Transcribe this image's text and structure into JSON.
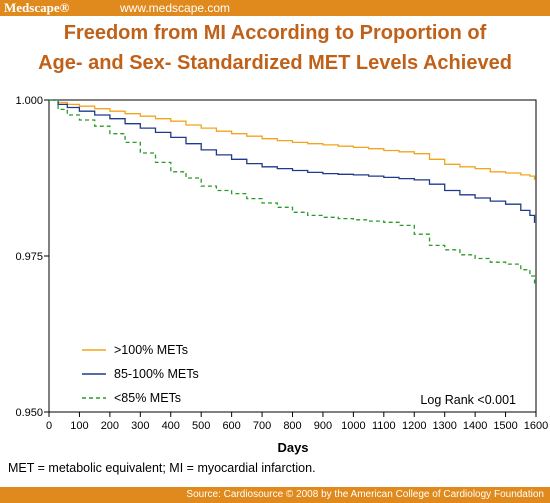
{
  "header": {
    "brand": "Medscape®",
    "url": "www.medscape.com"
  },
  "footer": {
    "note": "MET = metabolic equivalent; MI = myocardial infarction.",
    "source": "Source: Cardiosource © 2008 by the American College of Cardiology Foundation"
  },
  "colors": {
    "banner": "#e08a1e",
    "title": "#c0611a",
    "series_high": "#f2a51c",
    "series_mid": "#1f3a8c",
    "series_low": "#2a9a2a"
  },
  "chart_data": {
    "type": "line",
    "title_line1": "Freedom from MI According to Proportion of",
    "title_line2": "Age- and Sex- Standardized MET Levels Achieved",
    "xlabel": "Days",
    "ylabel": "",
    "xlim": [
      0,
      1600
    ],
    "ylim": [
      0.95,
      1.0
    ],
    "x_ticks": [
      0,
      100,
      200,
      300,
      400,
      500,
      600,
      700,
      800,
      900,
      1000,
      1100,
      1200,
      1300,
      1400,
      1500,
      1600
    ],
    "y_ticks": [
      {
        "value": 0.95,
        "label": "0.950"
      },
      {
        "value": 0.975,
        "label": "0.975"
      },
      {
        "value": 1.0,
        "label": "1.000"
      }
    ],
    "legend_position": "bottom-left",
    "annotation": "Log Rank <0.001",
    "series": [
      {
        "name": ">100% METs",
        "style": "solid",
        "x": [
          0,
          30,
          60,
          100,
          150,
          200,
          250,
          300,
          350,
          400,
          450,
          500,
          550,
          600,
          650,
          700,
          750,
          800,
          850,
          900,
          950,
          1000,
          1050,
          1100,
          1150,
          1200,
          1250,
          1300,
          1350,
          1400,
          1450,
          1500,
          1550,
          1580,
          1595
        ],
        "y": [
          1.0,
          0.9996,
          0.9993,
          0.999,
          0.9986,
          0.9982,
          0.9978,
          0.9974,
          0.997,
          0.9966,
          0.996,
          0.9955,
          0.995,
          0.9946,
          0.9942,
          0.9938,
          0.9935,
          0.9932,
          0.993,
          0.9928,
          0.9926,
          0.9924,
          0.9922,
          0.9919,
          0.9917,
          0.9914,
          0.9905,
          0.9897,
          0.9893,
          0.989,
          0.9885,
          0.9883,
          0.988,
          0.9878,
          0.9872
        ]
      },
      {
        "name": "85-100% METs",
        "style": "solid",
        "x": [
          0,
          30,
          60,
          100,
          150,
          200,
          250,
          300,
          350,
          400,
          450,
          500,
          550,
          600,
          650,
          700,
          750,
          800,
          850,
          900,
          950,
          1000,
          1050,
          1100,
          1150,
          1200,
          1250,
          1300,
          1350,
          1400,
          1450,
          1500,
          1550,
          1580,
          1595
        ],
        "y": [
          1.0,
          0.9993,
          0.9988,
          0.9982,
          0.9976,
          0.997,
          0.9962,
          0.9955,
          0.9948,
          0.994,
          0.993,
          0.992,
          0.9912,
          0.9905,
          0.9898,
          0.9893,
          0.989,
          0.9887,
          0.9884,
          0.9882,
          0.9881,
          0.988,
          0.9878,
          0.9876,
          0.9874,
          0.9872,
          0.9865,
          0.9855,
          0.9848,
          0.9843,
          0.9838,
          0.9833,
          0.9823,
          0.9815,
          0.9803
        ]
      },
      {
        "name": "<85% METs",
        "style": "dashed",
        "x": [
          0,
          30,
          60,
          100,
          150,
          200,
          250,
          300,
          350,
          400,
          450,
          500,
          550,
          600,
          650,
          700,
          750,
          800,
          850,
          900,
          950,
          1000,
          1050,
          1100,
          1150,
          1200,
          1250,
          1300,
          1350,
          1400,
          1450,
          1500,
          1550,
          1580,
          1595
        ],
        "y": [
          1.0,
          0.9985,
          0.9976,
          0.9968,
          0.9958,
          0.9946,
          0.9932,
          0.9915,
          0.99,
          0.9885,
          0.9875,
          0.9862,
          0.9855,
          0.985,
          0.9842,
          0.9835,
          0.9828,
          0.982,
          0.9815,
          0.9812,
          0.981,
          0.9808,
          0.9806,
          0.9804,
          0.9799,
          0.9785,
          0.9767,
          0.976,
          0.9752,
          0.9746,
          0.974,
          0.9737,
          0.9728,
          0.9718,
          0.9705
        ]
      }
    ]
  }
}
